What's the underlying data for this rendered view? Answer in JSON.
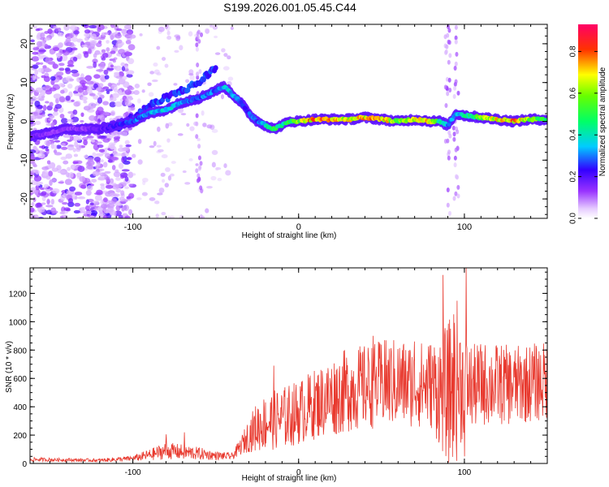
{
  "title": "S199.2026.001.05.45.C44",
  "chart_data": [
    {
      "type": "heatmap",
      "title": "S199.2026.001.05.45.C44",
      "xlabel": "Height of straight line (km)",
      "ylabel": "Frequency (Hz)",
      "xlim": [
        -162,
        150
      ],
      "ylim": [
        -25,
        25
      ],
      "xticks": [
        -100,
        0,
        100
      ],
      "xtick_labels": [
        "-100",
        "0",
        "100"
      ],
      "yticks": [
        -20,
        -10,
        0,
        10,
        20
      ],
      "ytick_labels": [
        "-20",
        "-10",
        "0",
        "10",
        "20"
      ],
      "colorbar": {
        "label": "Normalized spectral amplitude",
        "range": [
          0.0,
          0.93
        ],
        "ticks": [
          0.0,
          0.2,
          0.4,
          0.6,
          0.8
        ],
        "tick_labels": [
          "0.0",
          "0.2",
          "0.4",
          "0.6",
          "0.8"
        ],
        "colormap": [
          "#ffffff",
          "#e6ccff",
          "#9933ff",
          "#3300ff",
          "#00ccff",
          "#00ff66",
          "#ffff00",
          "#ff3300",
          "#ff0066"
        ]
      },
      "ridge": {
        "x": [
          -162,
          -150,
          -140,
          -130,
          -120,
          -110,
          -100,
          -90,
          -80,
          -70,
          -60,
          -55,
          -50,
          -45,
          -40,
          -35,
          -30,
          -25,
          -20,
          -15,
          -10,
          -5,
          0,
          10,
          20,
          30,
          40,
          50,
          60,
          70,
          80,
          85,
          90,
          95,
          100,
          110,
          120,
          130,
          140,
          150
        ],
        "freq": [
          -4,
          -3,
          -2,
          -2,
          -2,
          -1,
          0,
          2,
          3,
          5,
          6,
          7,
          8,
          9,
          7,
          5,
          2,
          0,
          -1,
          -2,
          -1,
          0,
          0,
          0.5,
          0.5,
          0.5,
          1,
          0.5,
          0,
          0.5,
          0,
          0,
          -1,
          2,
          1.5,
          1,
          0.5,
          0,
          0.5,
          0.5
        ],
        "amplitude": [
          0.2,
          0.15,
          0.15,
          0.15,
          0.2,
          0.25,
          0.3,
          0.35,
          0.4,
          0.35,
          0.3,
          0.35,
          0.3,
          0.4,
          0.35,
          0.3,
          0.3,
          0.3,
          0.4,
          0.55,
          0.45,
          0.55,
          0.65,
          0.85,
          0.8,
          0.7,
          0.75,
          0.8,
          0.6,
          0.75,
          0.7,
          0.5,
          0.3,
          0.35,
          0.45,
          0.6,
          0.75,
          0.8,
          0.65,
          0.5
        ]
      },
      "upper_branch": {
        "x": [
          -110,
          -100,
          -90,
          -80,
          -70,
          -60,
          -55,
          -50
        ],
        "freq": [
          -2,
          1,
          4,
          6,
          8,
          10,
          12,
          14
        ]
      }
    },
    {
      "type": "line",
      "xlabel": "Height of straight line (km)",
      "ylabel": "SNR (10 * v/v)",
      "xlim": [
        -162,
        150
      ],
      "ylim": [
        0,
        1380
      ],
      "xticks": [
        -100,
        0,
        100
      ],
      "xtick_labels": [
        "-100",
        "0",
        "100"
      ],
      "yticks": [
        0,
        200,
        400,
        600,
        800,
        1000,
        1200
      ],
      "ytick_labels": [
        "0",
        "200",
        "400",
        "600",
        "800",
        "1000",
        "1200"
      ],
      "series": [
        {
          "name": "SNR",
          "color": "#e8392e",
          "envelope_x": [
            -162,
            -140,
            -120,
            -100,
            -90,
            -80,
            -70,
            -60,
            -50,
            -40,
            -35,
            -30,
            -25,
            -20,
            -10,
            0,
            10,
            20,
            30,
            40,
            50,
            60,
            70,
            80,
            85,
            90,
            95,
            100,
            105,
            110,
            120,
            130,
            140,
            150
          ],
          "envelope_mean": [
            28,
            25,
            22,
            35,
            60,
            90,
            80,
            70,
            55,
            50,
            120,
            200,
            260,
            290,
            320,
            360,
            420,
            470,
            520,
            540,
            560,
            570,
            555,
            560,
            520,
            480,
            600,
            560,
            540,
            560,
            560,
            550,
            570,
            580
          ],
          "envelope_spread": [
            15,
            12,
            12,
            20,
            40,
            60,
            55,
            45,
            30,
            25,
            60,
            120,
            180,
            200,
            220,
            230,
            250,
            280,
            300,
            300,
            310,
            320,
            300,
            320,
            400,
            500,
            600,
            350,
            300,
            300,
            290,
            280,
            280,
            280
          ],
          "spikes": [
            {
              "x": 87,
              "y": 1330
            },
            {
              "x": 101,
              "y": 1380
            },
            {
              "x": 100,
              "y": 50
            },
            {
              "x": -80,
              "y": 205
            },
            {
              "x": -69,
              "y": 220
            },
            {
              "x": -15,
              "y": 690
            },
            {
              "x": 45,
              "y": 900
            },
            {
              "x": 52,
              "y": 870
            },
            {
              "x": 70,
              "y": 860
            }
          ]
        }
      ]
    }
  ]
}
